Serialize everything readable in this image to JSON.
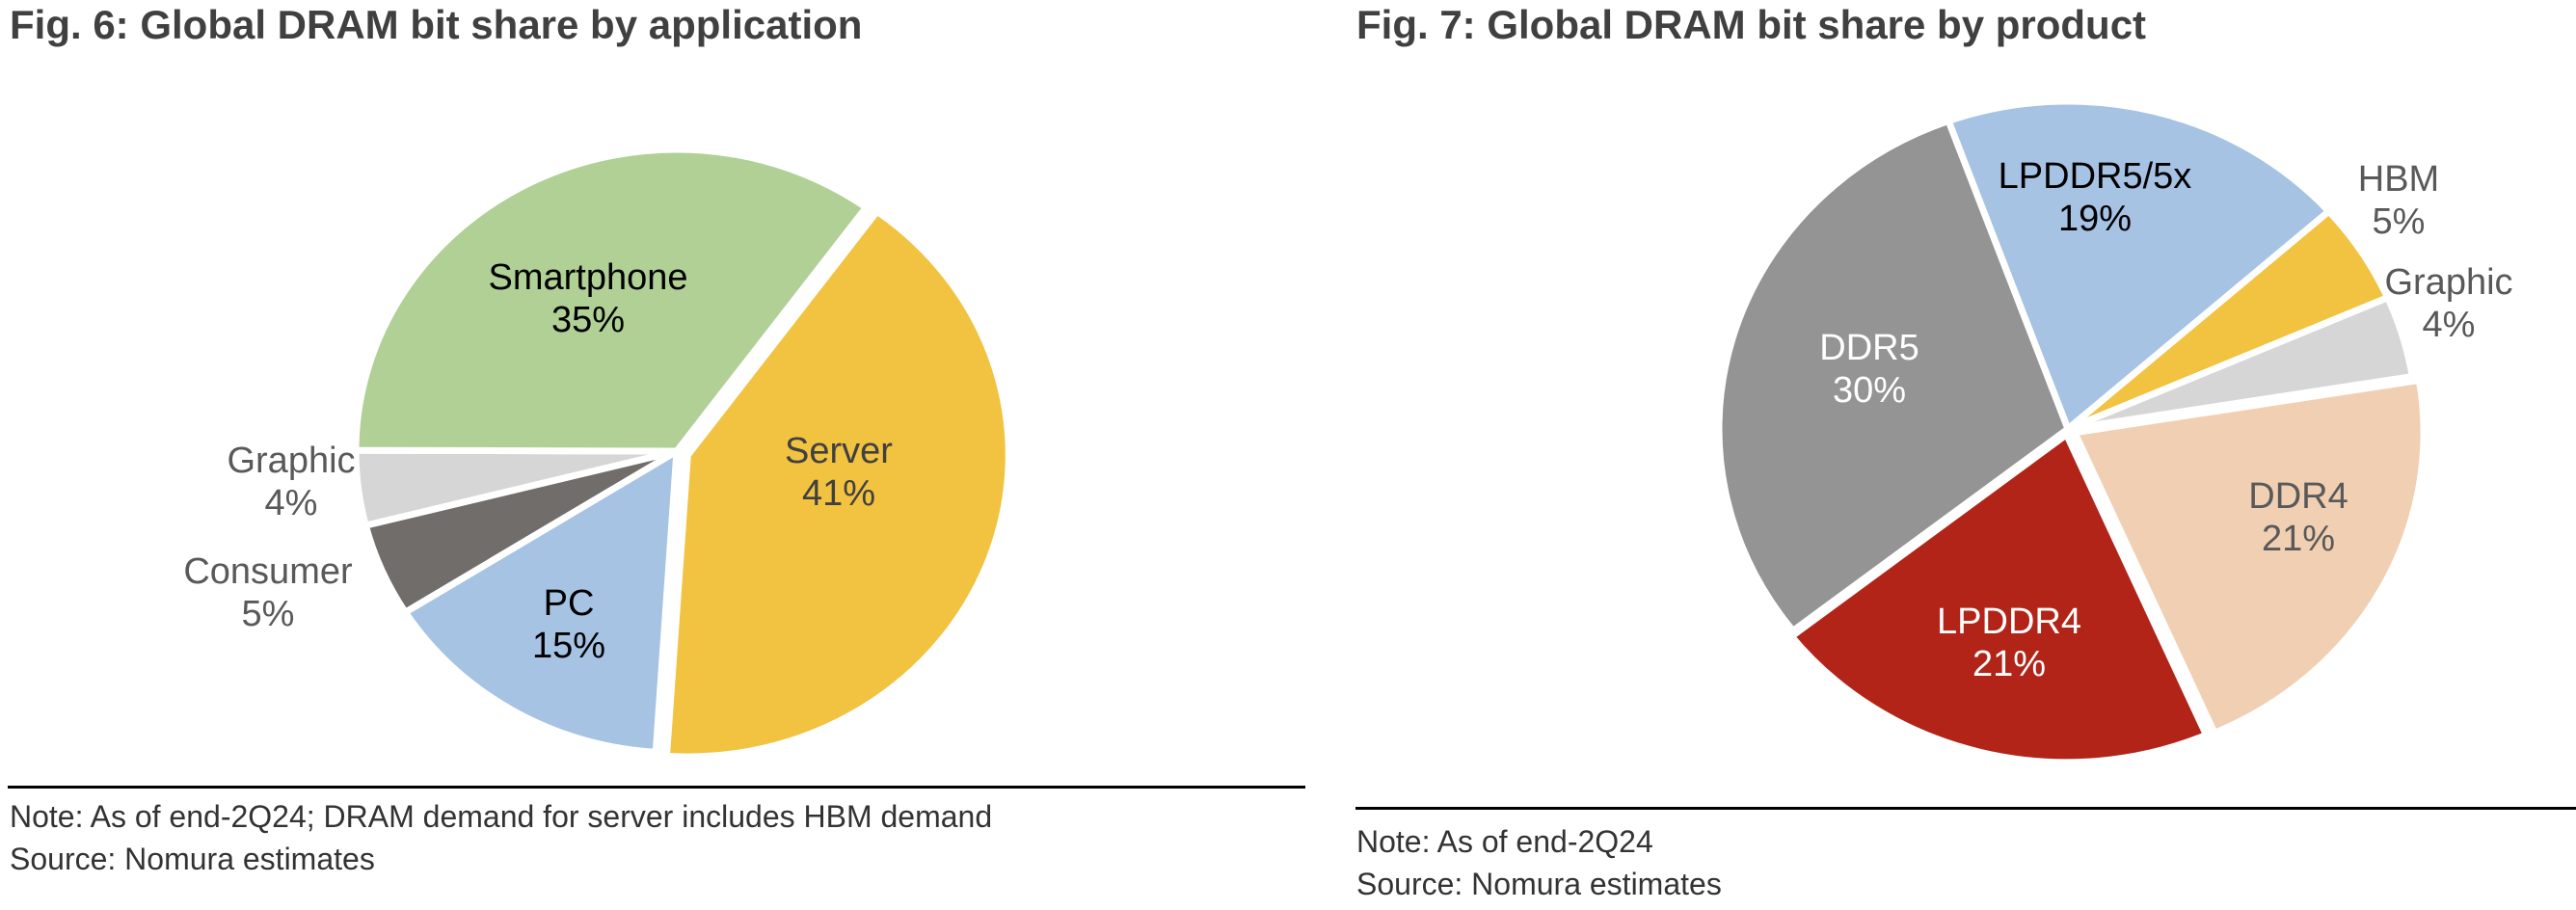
{
  "charts": [
    {
      "title": "Fig. 6: Global DRAM bit share by application",
      "note": "Note: As of end-2Q24; DRAM demand for server includes HBM demand",
      "source": "Source: Nomura estimates"
    },
    {
      "title": "Fig. 7: Global DRAM bit share by product",
      "note": "Note: As of end-2Q24",
      "source": "Source: Nomura estimates"
    }
  ],
  "chart_data": [
    {
      "type": "pie",
      "title": "Fig. 6: Global DRAM bit share by application",
      "unit": "%",
      "slices": [
        {
          "label": "Server",
          "value": 41,
          "value_label": "41%",
          "color": "#F2C241",
          "text_color": "#404040"
        },
        {
          "label": "PC",
          "value": 15,
          "value_label": "15%",
          "color": "#A6C3E4",
          "text_color": "#000000"
        },
        {
          "label": "Consumer",
          "value": 5,
          "value_label": "5%",
          "color": "#716D6B",
          "text_color": "#595959"
        },
        {
          "label": "Graphic",
          "value": 4,
          "value_label": "4%",
          "color": "#D6D6D6",
          "text_color": "#595959"
        },
        {
          "label": "Smartphone",
          "value": 35,
          "value_label": "35%",
          "color": "#B0D095",
          "text_color": "#000000"
        }
      ]
    },
    {
      "type": "pie",
      "title": "Fig. 7: Global DRAM bit share by product",
      "unit": "%",
      "slices": [
        {
          "label": "LPDDR5/5x",
          "value": 19,
          "value_label": "19%",
          "color": "#A6C3E4",
          "text_color": "#000000"
        },
        {
          "label": "HBM",
          "value": 5,
          "value_label": "5%",
          "color": "#F2C241",
          "text_color": "#595959"
        },
        {
          "label": "Graphic",
          "value": 4,
          "value_label": "4%",
          "color": "#D6D6D6",
          "text_color": "#595959"
        },
        {
          "label": "DDR4",
          "value": 21,
          "value_label": "21%",
          "color": "#F1CFB3",
          "text_color": "#595959"
        },
        {
          "label": "LPDDR4",
          "value": 21,
          "value_label": "21%",
          "color": "#B22418",
          "text_color": "#FFFFFF"
        },
        {
          "label": "DDR5",
          "value": 30,
          "value_label": "30%",
          "color": "#949494",
          "text_color": "#FFFFFF"
        }
      ]
    }
  ]
}
